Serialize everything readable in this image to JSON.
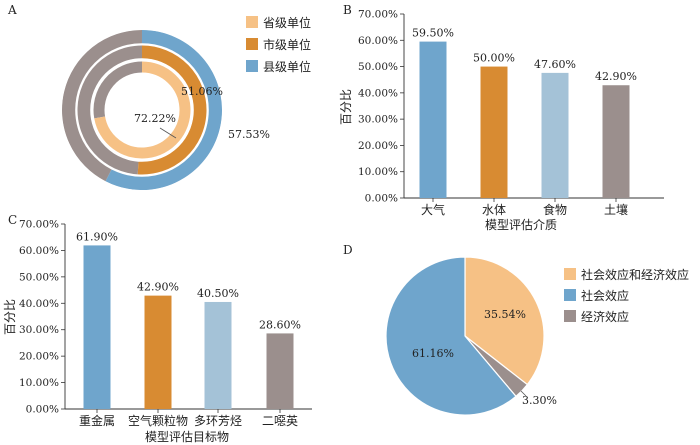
{
  "panels": [
    "A",
    "B",
    "C",
    "D"
  ],
  "colors": {
    "province": "#F6C185",
    "city": "#D88B32",
    "county": "#6FA5CC",
    "gray": "#9B8F8D",
    "air": "#6FA5CC",
    "water": "#D88B32",
    "food": "#A4C2D7",
    "soil": "#9B8F8D",
    "both": "#F6C185",
    "social": "#6FA5CC",
    "economic": "#9B8F8D"
  },
  "chart_data": [
    {
      "panel": "A",
      "type": "pie",
      "subtype": "concentric-donut",
      "series": [
        {
          "name": "省级单位",
          "value": 72.22,
          "label": "72.22%"
        },
        {
          "name": "市级单位",
          "value": 51.06,
          "label": "51.06%"
        },
        {
          "name": "县级单位",
          "value": 57.53,
          "label": "57.53%"
        }
      ],
      "legend": [
        "省级单位",
        "市级单位",
        "县级单位"
      ],
      "legend_position": "top-right"
    },
    {
      "panel": "B",
      "type": "bar",
      "categories": [
        "大气",
        "水体",
        "食物",
        "土壤"
      ],
      "values": [
        59.5,
        50.0,
        47.6,
        42.9
      ],
      "labels": [
        "59.50%",
        "50.00%",
        "47.60%",
        "42.90%"
      ],
      "xlabel": "模型评估介质",
      "ylabel": "百分比",
      "ylim": [
        0,
        70
      ],
      "yticks": [
        "0.00%",
        "10.00%",
        "20.00%",
        "30.00%",
        "40.00%",
        "50.00%",
        "60.00%",
        "70.00%"
      ]
    },
    {
      "panel": "C",
      "type": "bar",
      "categories": [
        "重金属",
        "空气颗粒物",
        "多环芳烃",
        "二噁英"
      ],
      "values": [
        61.9,
        42.9,
        40.5,
        28.6
      ],
      "labels": [
        "61.90%",
        "42.90%",
        "40.50%",
        "28.60%"
      ],
      "xlabel": "模型评估目标物",
      "ylabel": "百分比",
      "ylim": [
        0,
        70
      ],
      "yticks": [
        "0.00%",
        "10.00%",
        "20.00%",
        "30.00%",
        "40.00%",
        "50.00%",
        "60.00%",
        "70.00%"
      ]
    },
    {
      "panel": "D",
      "type": "pie",
      "categories": [
        "社会效应和经济效应",
        "经济效应",
        "社会效应"
      ],
      "values": [
        35.54,
        3.3,
        61.16
      ],
      "labels": [
        "35.54%",
        "3.30%",
        "61.16%"
      ],
      "legend": [
        "社会效应和经济效应",
        "社会效应",
        "经济效应"
      ],
      "legend_position": "right"
    }
  ]
}
